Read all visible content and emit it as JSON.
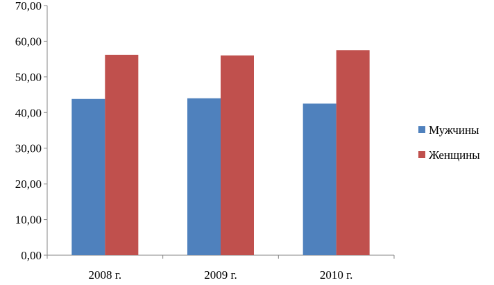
{
  "chart_data": {
    "type": "bar",
    "categories": [
      "2008 г.",
      "2009 г.",
      "2010 г."
    ],
    "series": [
      {
        "name": "Мужчины",
        "values": [
          43.8,
          44.0,
          42.5
        ],
        "color": "#4F81BD"
      },
      {
        "name": "Женщины",
        "values": [
          56.2,
          56.0,
          57.5
        ],
        "color": "#C0504D"
      }
    ],
    "ylim": [
      0,
      70
    ],
    "yticks": [
      0,
      10,
      20,
      30,
      40,
      50,
      60,
      70
    ],
    "ytick_labels": [
      "0,00",
      "10,00",
      "20,00",
      "30,00",
      "40,00",
      "50,00",
      "60,00",
      "70,00"
    ],
    "grid": false,
    "legend_position": "right",
    "title": "",
    "xlabel": "",
    "ylabel": ""
  }
}
